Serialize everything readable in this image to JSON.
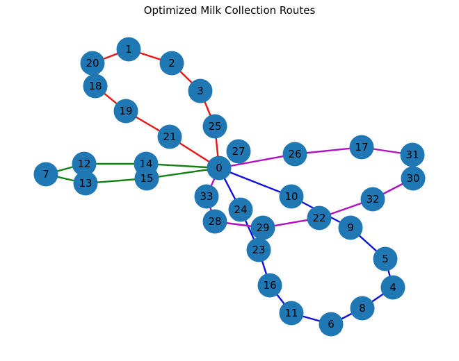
{
  "title": "Optimized Milk Collection Routes",
  "colors": {
    "node_fill": "#1f77b4",
    "route_red": "#e81515",
    "route_green": "#138013",
    "route_blue": "#1010e0",
    "route_magenta": "#b010c0"
  },
  "nodes": [
    {
      "id": "0"
    },
    {
      "id": "1"
    },
    {
      "id": "2"
    },
    {
      "id": "3"
    },
    {
      "id": "4"
    },
    {
      "id": "5"
    },
    {
      "id": "6"
    },
    {
      "id": "7"
    },
    {
      "id": "8"
    },
    {
      "id": "9"
    },
    {
      "id": "10"
    },
    {
      "id": "11"
    },
    {
      "id": "12"
    },
    {
      "id": "13"
    },
    {
      "id": "14"
    },
    {
      "id": "15"
    },
    {
      "id": "16"
    },
    {
      "id": "17"
    },
    {
      "id": "18"
    },
    {
      "id": "19"
    },
    {
      "id": "20"
    },
    {
      "id": "21"
    },
    {
      "id": "22"
    },
    {
      "id": "23"
    },
    {
      "id": "24"
    },
    {
      "id": "25"
    },
    {
      "id": "26"
    },
    {
      "id": "27"
    },
    {
      "id": "28"
    },
    {
      "id": "29"
    },
    {
      "id": "30"
    },
    {
      "id": "31"
    },
    {
      "id": "32"
    },
    {
      "id": "33"
    }
  ],
  "routes": [
    {
      "color": "route_red",
      "edges": [
        [
          "0",
          "25"
        ],
        [
          "25",
          "3"
        ],
        [
          "3",
          "2"
        ],
        [
          "2",
          "1"
        ],
        [
          "1",
          "20"
        ],
        [
          "18",
          "19"
        ],
        [
          "19",
          "21"
        ],
        [
          "21",
          "0"
        ]
      ]
    },
    {
      "color": "route_green",
      "edges": [
        [
          "0",
          "14"
        ],
        [
          "14",
          "12"
        ],
        [
          "12",
          "7"
        ],
        [
          "7",
          "13"
        ],
        [
          "13",
          "15"
        ],
        [
          "15",
          "0"
        ]
      ]
    },
    {
      "color": "route_blue",
      "edges": [
        [
          "0",
          "10"
        ],
        [
          "10",
          "9"
        ],
        [
          "9",
          "5"
        ],
        [
          "5",
          "4"
        ],
        [
          "4",
          "8"
        ],
        [
          "8",
          "6"
        ],
        [
          "6",
          "11"
        ],
        [
          "11",
          "16"
        ],
        [
          "16",
          "23"
        ],
        [
          "23",
          "24"
        ],
        [
          "24",
          "0"
        ]
      ]
    },
    {
      "color": "route_magenta",
      "edges": [
        [
          "0",
          "26"
        ],
        [
          "26",
          "17"
        ],
        [
          "17",
          "31"
        ],
        [
          "30",
          "32"
        ],
        [
          "32",
          "22"
        ],
        [
          "22",
          "29"
        ],
        [
          "29",
          "28"
        ],
        [
          "28",
          "33"
        ],
        [
          "33",
          "0"
        ]
      ]
    }
  ]
}
